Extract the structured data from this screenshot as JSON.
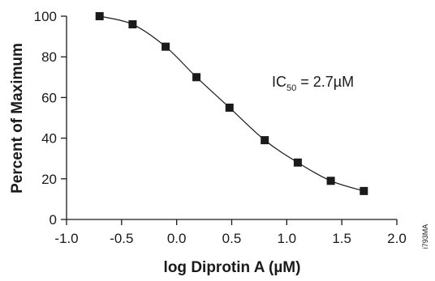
{
  "chart_data": {
    "type": "line",
    "xlabel": "log Diprotin A (µM)",
    "ylabel": "Percent of Maximum",
    "xlim": [
      -1.0,
      2.0
    ],
    "ylim": [
      0,
      100
    ],
    "x_ticks": [
      "-1.0",
      "-0.5",
      "0.0",
      "0.5",
      "1.0",
      "1.5",
      "2.0"
    ],
    "y_ticks": [
      "0",
      "20",
      "40",
      "60",
      "80",
      "100"
    ],
    "grid": false,
    "marker": "square",
    "series": [
      {
        "x": [
          -0.7,
          -0.4,
          -0.1,
          0.18,
          0.48,
          0.8,
          1.1,
          1.4,
          1.7
        ],
        "y": [
          100,
          96,
          85,
          70,
          55,
          39,
          28,
          19,
          14
        ]
      }
    ],
    "annotation": {
      "prefix": "IC",
      "subscript": "50",
      "suffix": " = 2.7µM"
    }
  },
  "figure_id": "i793MA"
}
